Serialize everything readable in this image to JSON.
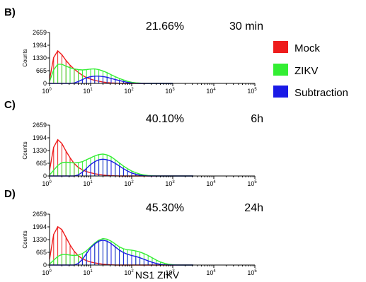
{
  "legend": [
    {
      "label": "Mock",
      "color": "#ee1c1c"
    },
    {
      "label": "ZIKV",
      "color": "#33ee33"
    },
    {
      "label": "Subtraction",
      "color": "#1a1ae6"
    }
  ],
  "x_axis_label": "NS1 ZIKV",
  "chart_data": [
    {
      "type": "area",
      "panel_label": "B)",
      "percentage": "21.66%",
      "time": "30 min",
      "ylabel": "Counts",
      "y_ticks": [
        "2659",
        "1994",
        "1330",
        "665",
        "0"
      ],
      "ylim": [
        0,
        2659
      ],
      "x_scale": "log",
      "xlim": [
        1,
        100000
      ],
      "x_tick_base": "10",
      "x_tick_exponents": [
        "0",
        "1",
        "2",
        "3",
        "4",
        "5"
      ],
      "x_log10": [
        0,
        0.1,
        0.2,
        0.3,
        0.4,
        0.5,
        0.6,
        0.7,
        0.8,
        0.9,
        1.0,
        1.1,
        1.2,
        1.3,
        1.4,
        1.5,
        1.6,
        1.7,
        1.8,
        1.9,
        2.0,
        2.1,
        2.2,
        2.3,
        2.4,
        2.5,
        2.6,
        2.7,
        2.8,
        2.9,
        3.0
      ],
      "series": [
        {
          "name": "Mock",
          "values": [
            200,
            1350,
            1700,
            1500,
            1200,
            950,
            750,
            580,
            420,
            300,
            220,
            160,
            110,
            70,
            45,
            25,
            15,
            8,
            0,
            0,
            0,
            0,
            0,
            0,
            0,
            0,
            0,
            0,
            0,
            0,
            0
          ]
        },
        {
          "name": "ZIKV",
          "values": [
            100,
            700,
            1000,
            1000,
            900,
            820,
            760,
            720,
            700,
            720,
            750,
            760,
            720,
            650,
            560,
            450,
            350,
            260,
            180,
            110,
            60,
            30,
            15,
            5,
            0,
            0,
            0,
            0,
            0,
            0,
            0
          ]
        },
        {
          "name": "Subtraction",
          "values": [
            0,
            0,
            0,
            0,
            0,
            0,
            20,
            100,
            200,
            300,
            350,
            380,
            380,
            360,
            320,
            260,
            200,
            150,
            100,
            50,
            20,
            5,
            0,
            0,
            0,
            0,
            0,
            0,
            0,
            0,
            0
          ]
        }
      ]
    },
    {
      "type": "area",
      "panel_label": "C)",
      "percentage": "40.10%",
      "time": "6h",
      "ylabel": "Counts",
      "y_ticks": [
        "2659",
        "1994",
        "1330",
        "665",
        "0"
      ],
      "ylim": [
        0,
        2659
      ],
      "x_scale": "log",
      "xlim": [
        1,
        100000
      ],
      "x_tick_base": "10",
      "x_tick_exponents": [
        "0",
        "1",
        "2",
        "3",
        "4",
        "5"
      ],
      "x_log10": [
        0,
        0.1,
        0.2,
        0.3,
        0.4,
        0.5,
        0.6,
        0.7,
        0.8,
        0.9,
        1.0,
        1.1,
        1.2,
        1.3,
        1.4,
        1.5,
        1.6,
        1.7,
        1.8,
        1.9,
        2.0,
        2.1,
        2.2,
        2.3,
        2.4,
        2.5,
        2.6,
        2.7,
        2.8,
        2.9,
        3.0,
        3.1,
        3.2,
        3.3,
        3.4,
        3.5
      ],
      "series": [
        {
          "name": "Mock",
          "values": [
            300,
            1500,
            1900,
            1700,
            1300,
            950,
            650,
            450,
            320,
            230,
            170,
            120,
            80,
            50,
            30,
            15,
            8,
            0,
            0,
            0,
            0,
            0,
            0,
            0,
            0,
            0,
            0,
            0,
            0,
            0,
            0,
            0,
            0,
            0,
            0,
            0
          ]
        },
        {
          "name": "ZIKV",
          "values": [
            50,
            300,
            550,
            700,
            720,
            700,
            680,
            700,
            750,
            850,
            950,
            1050,
            1120,
            1150,
            1100,
            1000,
            850,
            680,
            520,
            380,
            260,
            170,
            100,
            55,
            25,
            10,
            0,
            0,
            0,
            0,
            0,
            0,
            0,
            0,
            0,
            0
          ]
        },
        {
          "name": "Subtraction",
          "values": [
            0,
            0,
            0,
            0,
            0,
            0,
            0,
            60,
            200,
            400,
            600,
            750,
            850,
            880,
            850,
            780,
            660,
            520,
            380,
            260,
            160,
            90,
            40,
            10,
            0,
            0,
            0,
            0,
            0,
            0,
            0,
            0,
            0,
            0,
            0,
            0
          ]
        }
      ]
    },
    {
      "type": "area",
      "panel_label": "D)",
      "percentage": "45.30%",
      "time": "24h",
      "ylabel": "Counts",
      "y_ticks": [
        "2659",
        "1994",
        "1330",
        "665",
        "0"
      ],
      "ylim": [
        0,
        2659
      ],
      "x_scale": "log",
      "xlim": [
        1,
        100000
      ],
      "x_tick_base": "10",
      "x_tick_exponents": [
        "0",
        "1",
        "2",
        "3",
        "4",
        "5"
      ],
      "x_log10": [
        0,
        0.1,
        0.2,
        0.3,
        0.4,
        0.5,
        0.6,
        0.7,
        0.8,
        0.9,
        1.0,
        1.1,
        1.2,
        1.3,
        1.4,
        1.5,
        1.6,
        1.7,
        1.8,
        1.9,
        2.0,
        2.1,
        2.2,
        2.3,
        2.4,
        2.5,
        2.6,
        2.7,
        2.8,
        2.9,
        3.0,
        3.1,
        3.2,
        3.3,
        3.4,
        3.5
      ],
      "series": [
        {
          "name": "Mock",
          "values": [
            300,
            1600,
            2000,
            1850,
            1450,
            1050,
            720,
            480,
            330,
            230,
            160,
            110,
            75,
            45,
            25,
            12,
            0,
            0,
            0,
            0,
            0,
            0,
            0,
            0,
            0,
            0,
            0,
            0,
            0,
            0,
            0,
            0,
            0,
            0,
            0,
            0
          ]
        },
        {
          "name": "ZIKV",
          "values": [
            50,
            250,
            450,
            550,
            550,
            520,
            500,
            520,
            600,
            750,
            950,
            1150,
            1300,
            1380,
            1350,
            1250,
            1100,
            950,
            850,
            800,
            780,
            740,
            680,
            600,
            500,
            380,
            260,
            160,
            90,
            40,
            15,
            0,
            0,
            0,
            0,
            0
          ]
        },
        {
          "name": "Subtraction",
          "values": [
            0,
            0,
            0,
            0,
            0,
            0,
            0,
            80,
            300,
            600,
            900,
            1100,
            1250,
            1300,
            1250,
            1120,
            950,
            780,
            650,
            560,
            500,
            450,
            380,
            300,
            220,
            140,
            80,
            35,
            10,
            0,
            0,
            0,
            0,
            0,
            0,
            0
          ]
        }
      ]
    }
  ]
}
